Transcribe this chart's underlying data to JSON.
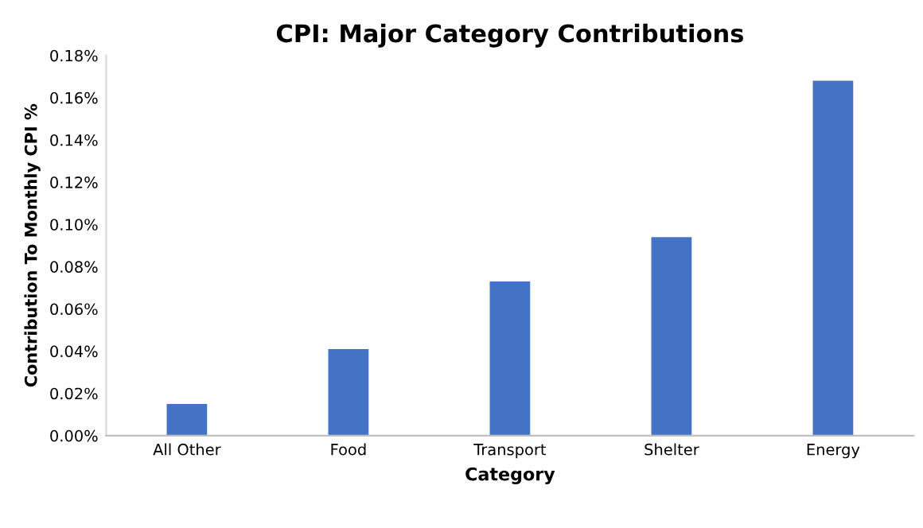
{
  "chart_data": {
    "type": "bar",
    "title": "CPI: Major Category Contributions",
    "xlabel": "Category",
    "ylabel": "Contribution To Monthly CPI %",
    "categories": [
      "All Other",
      "Food",
      "Transport",
      "Shelter",
      "Energy"
    ],
    "values": [
      0.015,
      0.041,
      0.073,
      0.094,
      0.168
    ],
    "color": "#4472c4",
    "ylim": [
      0,
      0.18
    ],
    "yticks": [
      {
        "value": 0,
        "label": "0.00%"
      },
      {
        "value": 0.02,
        "label": "0.02%"
      },
      {
        "value": 0.04,
        "label": "0.04%"
      },
      {
        "value": 0.06,
        "label": "0.06%"
      },
      {
        "value": 0.08,
        "label": "0.08%"
      },
      {
        "value": 0.1,
        "label": "0.10%"
      },
      {
        "value": 0.12,
        "label": "0.12%"
      },
      {
        "value": 0.14,
        "label": "0.14%"
      },
      {
        "value": 0.16,
        "label": "0.16%"
      },
      {
        "value": 0.18,
        "label": "0.18%"
      }
    ],
    "grid": false
  }
}
